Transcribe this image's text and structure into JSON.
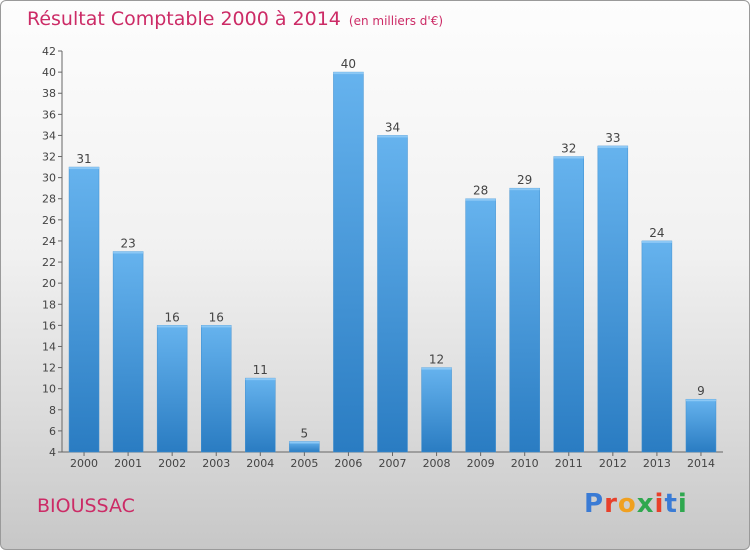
{
  "title": "Résultat Comptable 2000 à 2014",
  "subtitle": "(en milliers d'€)",
  "city": "BIOUSSAC",
  "logo": {
    "text": "Proxiti",
    "colors": [
      "#3a7bd5",
      "#e8402a",
      "#f0a020",
      "#2fa84f",
      "#e8402a",
      "#3a7bd5",
      "#2fa84f"
    ]
  },
  "colors": {
    "title": "#cc2b66",
    "bar_light": "#62b0ec",
    "bar_dark": "#2b7dc3"
  },
  "chart_data": {
    "type": "bar",
    "categories": [
      "2000",
      "2001",
      "2002",
      "2003",
      "2004",
      "2005",
      "2006",
      "2007",
      "2008",
      "2009",
      "2010",
      "2011",
      "2012",
      "2013",
      "2014"
    ],
    "values": [
      31,
      23,
      16,
      16,
      11,
      5,
      40,
      34,
      12,
      28,
      29,
      32,
      33,
      24,
      9
    ],
    "ylim": [
      4,
      42
    ],
    "yticks": [
      4,
      6,
      8,
      10,
      12,
      14,
      16,
      18,
      20,
      22,
      24,
      26,
      28,
      30,
      32,
      34,
      36,
      38,
      40,
      42
    ],
    "grid": false,
    "legend": "none"
  }
}
